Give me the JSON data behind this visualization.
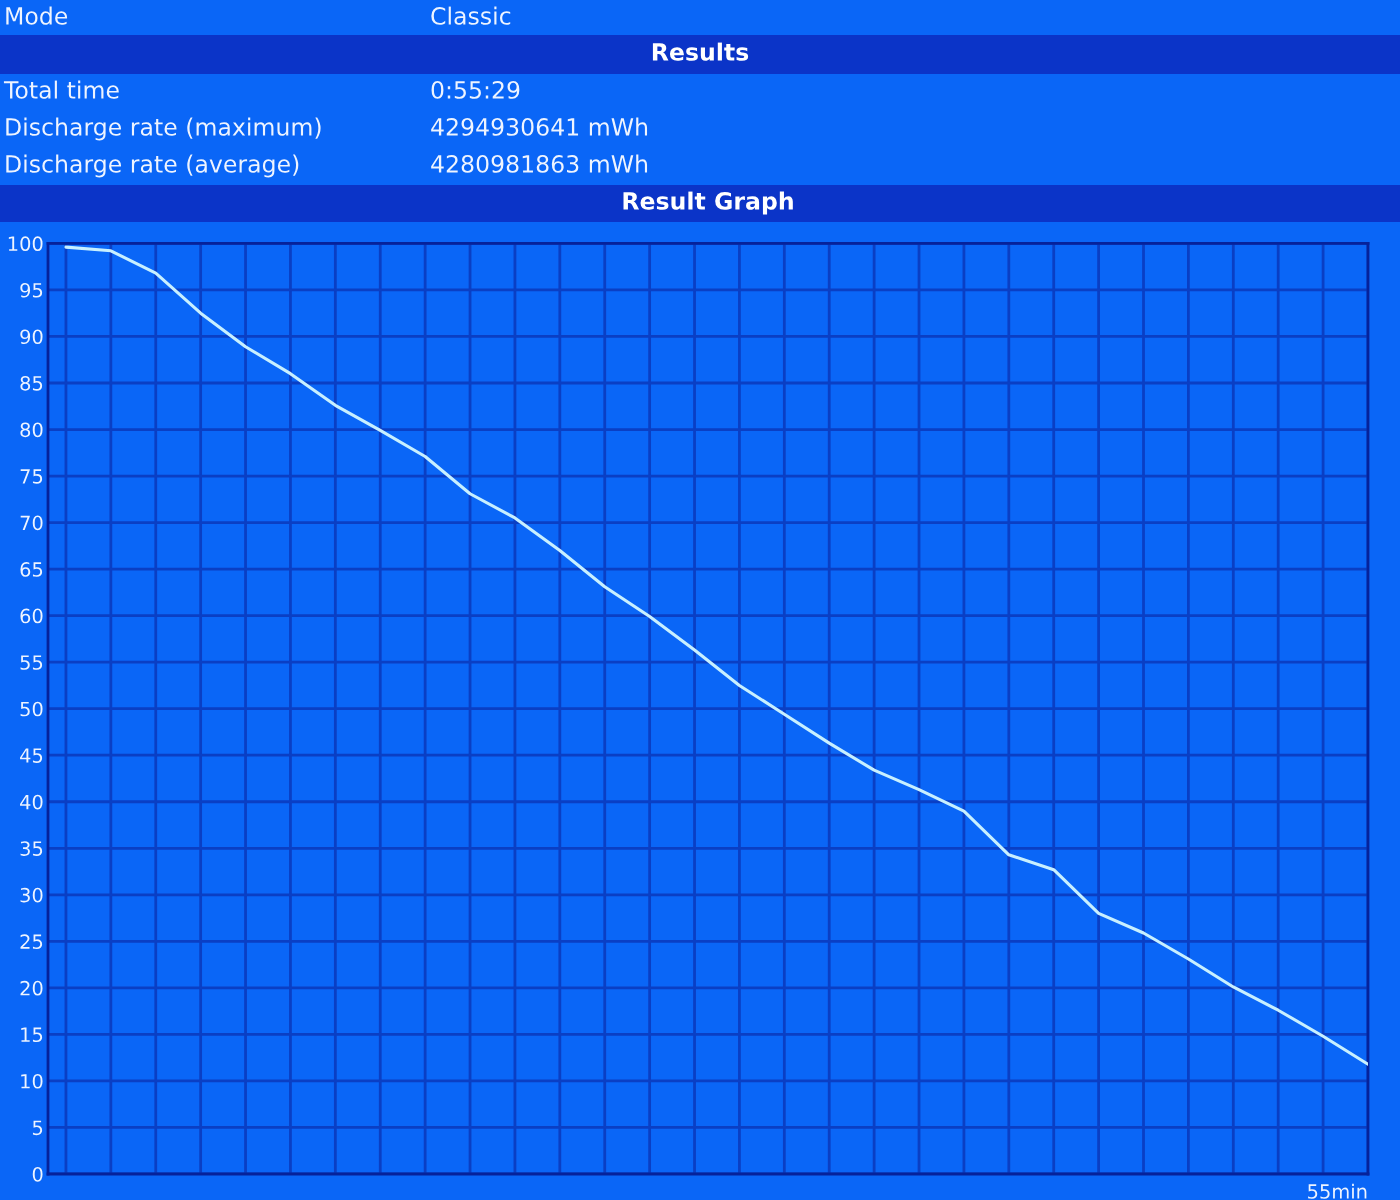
{
  "chart_data": {
    "type": "line",
    "title": "Result Graph",
    "subtitle": "Results",
    "annotations": [
      "Mode",
      "Classic",
      "Total time",
      "0:55:29",
      "Discharge rate (maximum)",
      "4294930641 mWh",
      "Discharge rate (average)",
      "4280981863 mWh"
    ],
    "xlabel": "55min",
    "categories": [
      null,
      null,
      null,
      null,
      null,
      null,
      null,
      null,
      null,
      null,
      null,
      null,
      null,
      null,
      null,
      null,
      null,
      null,
      null,
      null,
      null,
      null,
      null,
      null,
      null,
      null,
      null,
      null,
      null,
      null
    ],
    "series": [
      {
        "color": "#c8f0ff",
        "values": [
          99.6,
          99.2,
          96.8,
          92.5,
          88.9,
          86.0,
          82.6,
          79.9,
          77.1,
          73.1,
          70.5,
          67.0,
          63.1,
          59.9,
          56.3,
          52.5,
          49.4,
          46.3,
          43.4,
          41.3,
          39.0,
          34.3,
          32.7,
          28.0,
          25.9,
          23.1,
          20.1,
          17.6,
          14.8,
          11.8
        ]
      }
    ],
    "ylim": [
      0,
      100
    ],
    "yticks": [
      0,
      5,
      10,
      15,
      20,
      25,
      30,
      35,
      40,
      45,
      50,
      55,
      60,
      65,
      70,
      75,
      80,
      85,
      90,
      95,
      100
    ],
    "grid": true
  }
}
